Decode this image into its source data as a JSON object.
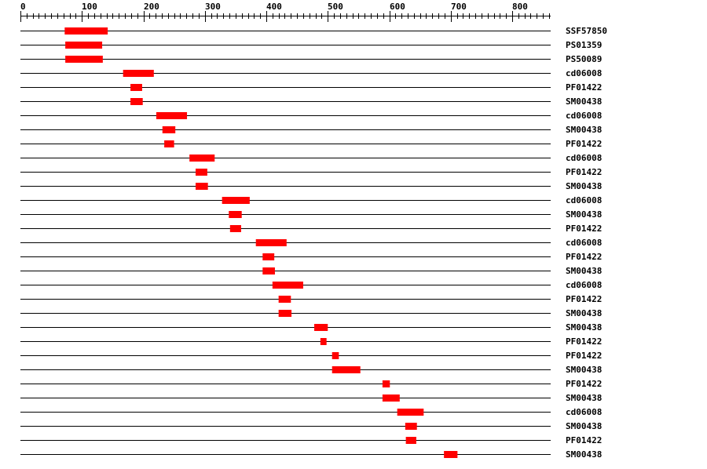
{
  "chart_data": {
    "type": "bar",
    "xlim": [
      0,
      863
    ],
    "axis_ticks": [
      0,
      100,
      200,
      300,
      400,
      500,
      600,
      700,
      800
    ],
    "minor_tick_step": 10,
    "bar_color": "#ff0000",
    "rows": [
      {
        "label": "SSF57850",
        "start": 72,
        "end": 142
      },
      {
        "label": "PS01359",
        "start": 73,
        "end": 133
      },
      {
        "label": "PS50089",
        "start": 73,
        "end": 134
      },
      {
        "label": "cd06008",
        "start": 167,
        "end": 217
      },
      {
        "label": "PF01422",
        "start": 179,
        "end": 198
      },
      {
        "label": "SM00438",
        "start": 179,
        "end": 199
      },
      {
        "label": "cd06008",
        "start": 221,
        "end": 271
      },
      {
        "label": "SM00438",
        "start": 231,
        "end": 252
      },
      {
        "label": "PF01422",
        "start": 234,
        "end": 250
      },
      {
        "label": "cd06008",
        "start": 275,
        "end": 316
      },
      {
        "label": "PF01422",
        "start": 285,
        "end": 304
      },
      {
        "label": "SM00438",
        "start": 285,
        "end": 305
      },
      {
        "label": "cd06008",
        "start": 328,
        "end": 373
      },
      {
        "label": "SM00438",
        "start": 339,
        "end": 360
      },
      {
        "label": "PF01422",
        "start": 341,
        "end": 359
      },
      {
        "label": "cd06008",
        "start": 383,
        "end": 433
      },
      {
        "label": "PF01422",
        "start": 394,
        "end": 413
      },
      {
        "label": "SM00438",
        "start": 394,
        "end": 414
      },
      {
        "label": "cd06008",
        "start": 410,
        "end": 460
      },
      {
        "label": "PF01422",
        "start": 420,
        "end": 440
      },
      {
        "label": "SM00438",
        "start": 420,
        "end": 441
      },
      {
        "label": "SM00438",
        "start": 478,
        "end": 500
      },
      {
        "label": "PF01422",
        "start": 488,
        "end": 498
      },
      {
        "label": "PF01422",
        "start": 507,
        "end": 518
      },
      {
        "label": "SM00438",
        "start": 507,
        "end": 553
      },
      {
        "label": "PF01422",
        "start": 589,
        "end": 601
      },
      {
        "label": "SM00438",
        "start": 589,
        "end": 617
      },
      {
        "label": "cd06008",
        "start": 613,
        "end": 656
      },
      {
        "label": "SM00438",
        "start": 626,
        "end": 645
      },
      {
        "label": "PF01422",
        "start": 627,
        "end": 644
      },
      {
        "label": "SM00438",
        "start": 689,
        "end": 711
      }
    ]
  }
}
